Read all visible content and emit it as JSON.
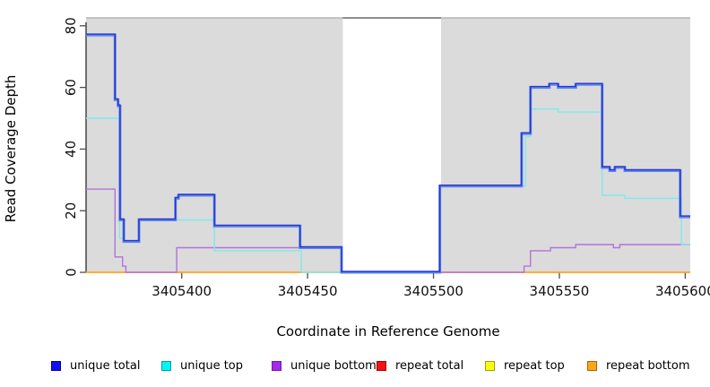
{
  "chart_data": {
    "type": "line",
    "subtype": "step-coverage",
    "title": "",
    "xlabel": "Coordinate in Reference Genome",
    "ylabel": "Read Coverage Depth",
    "xlim": [
      3405362,
      3405602
    ],
    "ylim": [
      0,
      82
    ],
    "x_ticks": [
      3405400,
      3405450,
      3405500,
      3405550,
      3405600
    ],
    "y_ticks": [
      0,
      20,
      40,
      60,
      80
    ],
    "grid": false,
    "panel_color": "#dbdbdb",
    "panel_top_edge_color": "#b5b5b5",
    "gap_top_edge_color": "#8d8d8d",
    "shaded_regions": [
      {
        "x0": 3405362,
        "x1": 3405464,
        "color": "#dbdbdb"
      },
      {
        "x0": 3405503,
        "x1": 3405602,
        "color": "#dbdbdb"
      }
    ],
    "gap_region": {
      "x0": 3405464,
      "x1": 3405503,
      "color": "#ffffff"
    },
    "series": [
      {
        "name": "repeat total",
        "color": "#e62020",
        "width": 1.2,
        "points": [
          [
            3405362,
            0
          ]
        ],
        "end": 3405602
      },
      {
        "name": "repeat top",
        "color": "#fafa28",
        "width": 1.2,
        "points": [
          [
            3405362,
            0
          ]
        ],
        "end": 3405602
      },
      {
        "name": "repeat bottom",
        "color": "#ffa512",
        "width": 1.6,
        "points": [
          [
            3405362,
            0
          ]
        ],
        "end": 3405602
      },
      {
        "name": "unique bottom",
        "color": "#b273db",
        "width": 1.4,
        "points": [
          [
            3405362,
            27
          ],
          [
            3405373.5,
            5
          ],
          [
            3405376.5,
            2
          ],
          [
            3405377.8,
            0
          ],
          [
            3405398,
            8
          ],
          [
            3405463.5,
            0
          ],
          [
            3405536,
            2
          ],
          [
            3405538.5,
            7
          ],
          [
            3405546.5,
            8
          ],
          [
            3405556.5,
            9
          ],
          [
            3405571.5,
            8
          ],
          [
            3405574,
            9
          ]
        ],
        "end": 3405602
      },
      {
        "name": "unique top",
        "color": "#7fe9e9",
        "width": 1.4,
        "points": [
          [
            3405362,
            50
          ],
          [
            3405375.3,
            11
          ],
          [
            3405377,
            10
          ],
          [
            3405383,
            17
          ],
          [
            3405413,
            7
          ],
          [
            3405447.5,
            0
          ],
          [
            3405502.5,
            28
          ],
          [
            3405536.5,
            44
          ],
          [
            3405538.5,
            53
          ],
          [
            3405549.5,
            52
          ],
          [
            3405567,
            25
          ],
          [
            3405576,
            24
          ],
          [
            3405598.5,
            9
          ]
        ],
        "end": 3405602
      },
      {
        "name": "unique total",
        "color": "#5c88ea",
        "width": 3,
        "overlay_color": "#2a33cf",
        "overlay_width": 1.4,
        "overlay_dy": -1,
        "points": [
          [
            3405362,
            77
          ],
          [
            3405373.5,
            56
          ],
          [
            3405374.7,
            54
          ],
          [
            3405375.5,
            17
          ],
          [
            3405377,
            10
          ],
          [
            3405383,
            17
          ],
          [
            3405397.5,
            24
          ],
          [
            3405398.7,
            25
          ],
          [
            3405413,
            15
          ],
          [
            3405447,
            8
          ],
          [
            3405463.5,
            0
          ],
          [
            3405502.5,
            28
          ],
          [
            3405535,
            45
          ],
          [
            3405538.5,
            60
          ],
          [
            3405546,
            61
          ],
          [
            3405549.5,
            60
          ],
          [
            3405556.5,
            61
          ],
          [
            3405567,
            34
          ],
          [
            3405570,
            33
          ],
          [
            3405572,
            34
          ],
          [
            3405576,
            33
          ],
          [
            3405598,
            18
          ]
        ],
        "end": 3405602
      }
    ]
  },
  "legend": {
    "items": [
      {
        "label": "unique total",
        "fill": "#1010f0",
        "border": "#0000a0"
      },
      {
        "label": "unique top",
        "fill": "#00f5f5",
        "border": "#00a0a0"
      },
      {
        "label": "unique bottom",
        "fill": "#a428f0",
        "border": "#6a1b9a"
      },
      {
        "label": "repeat total",
        "fill": "#f51111",
        "border": "#a00000"
      },
      {
        "label": "repeat top",
        "fill": "#fcfc13",
        "border": "#a0a000"
      },
      {
        "label": "repeat bottom",
        "fill": "#ffa519",
        "border": "#b06000"
      }
    ]
  }
}
